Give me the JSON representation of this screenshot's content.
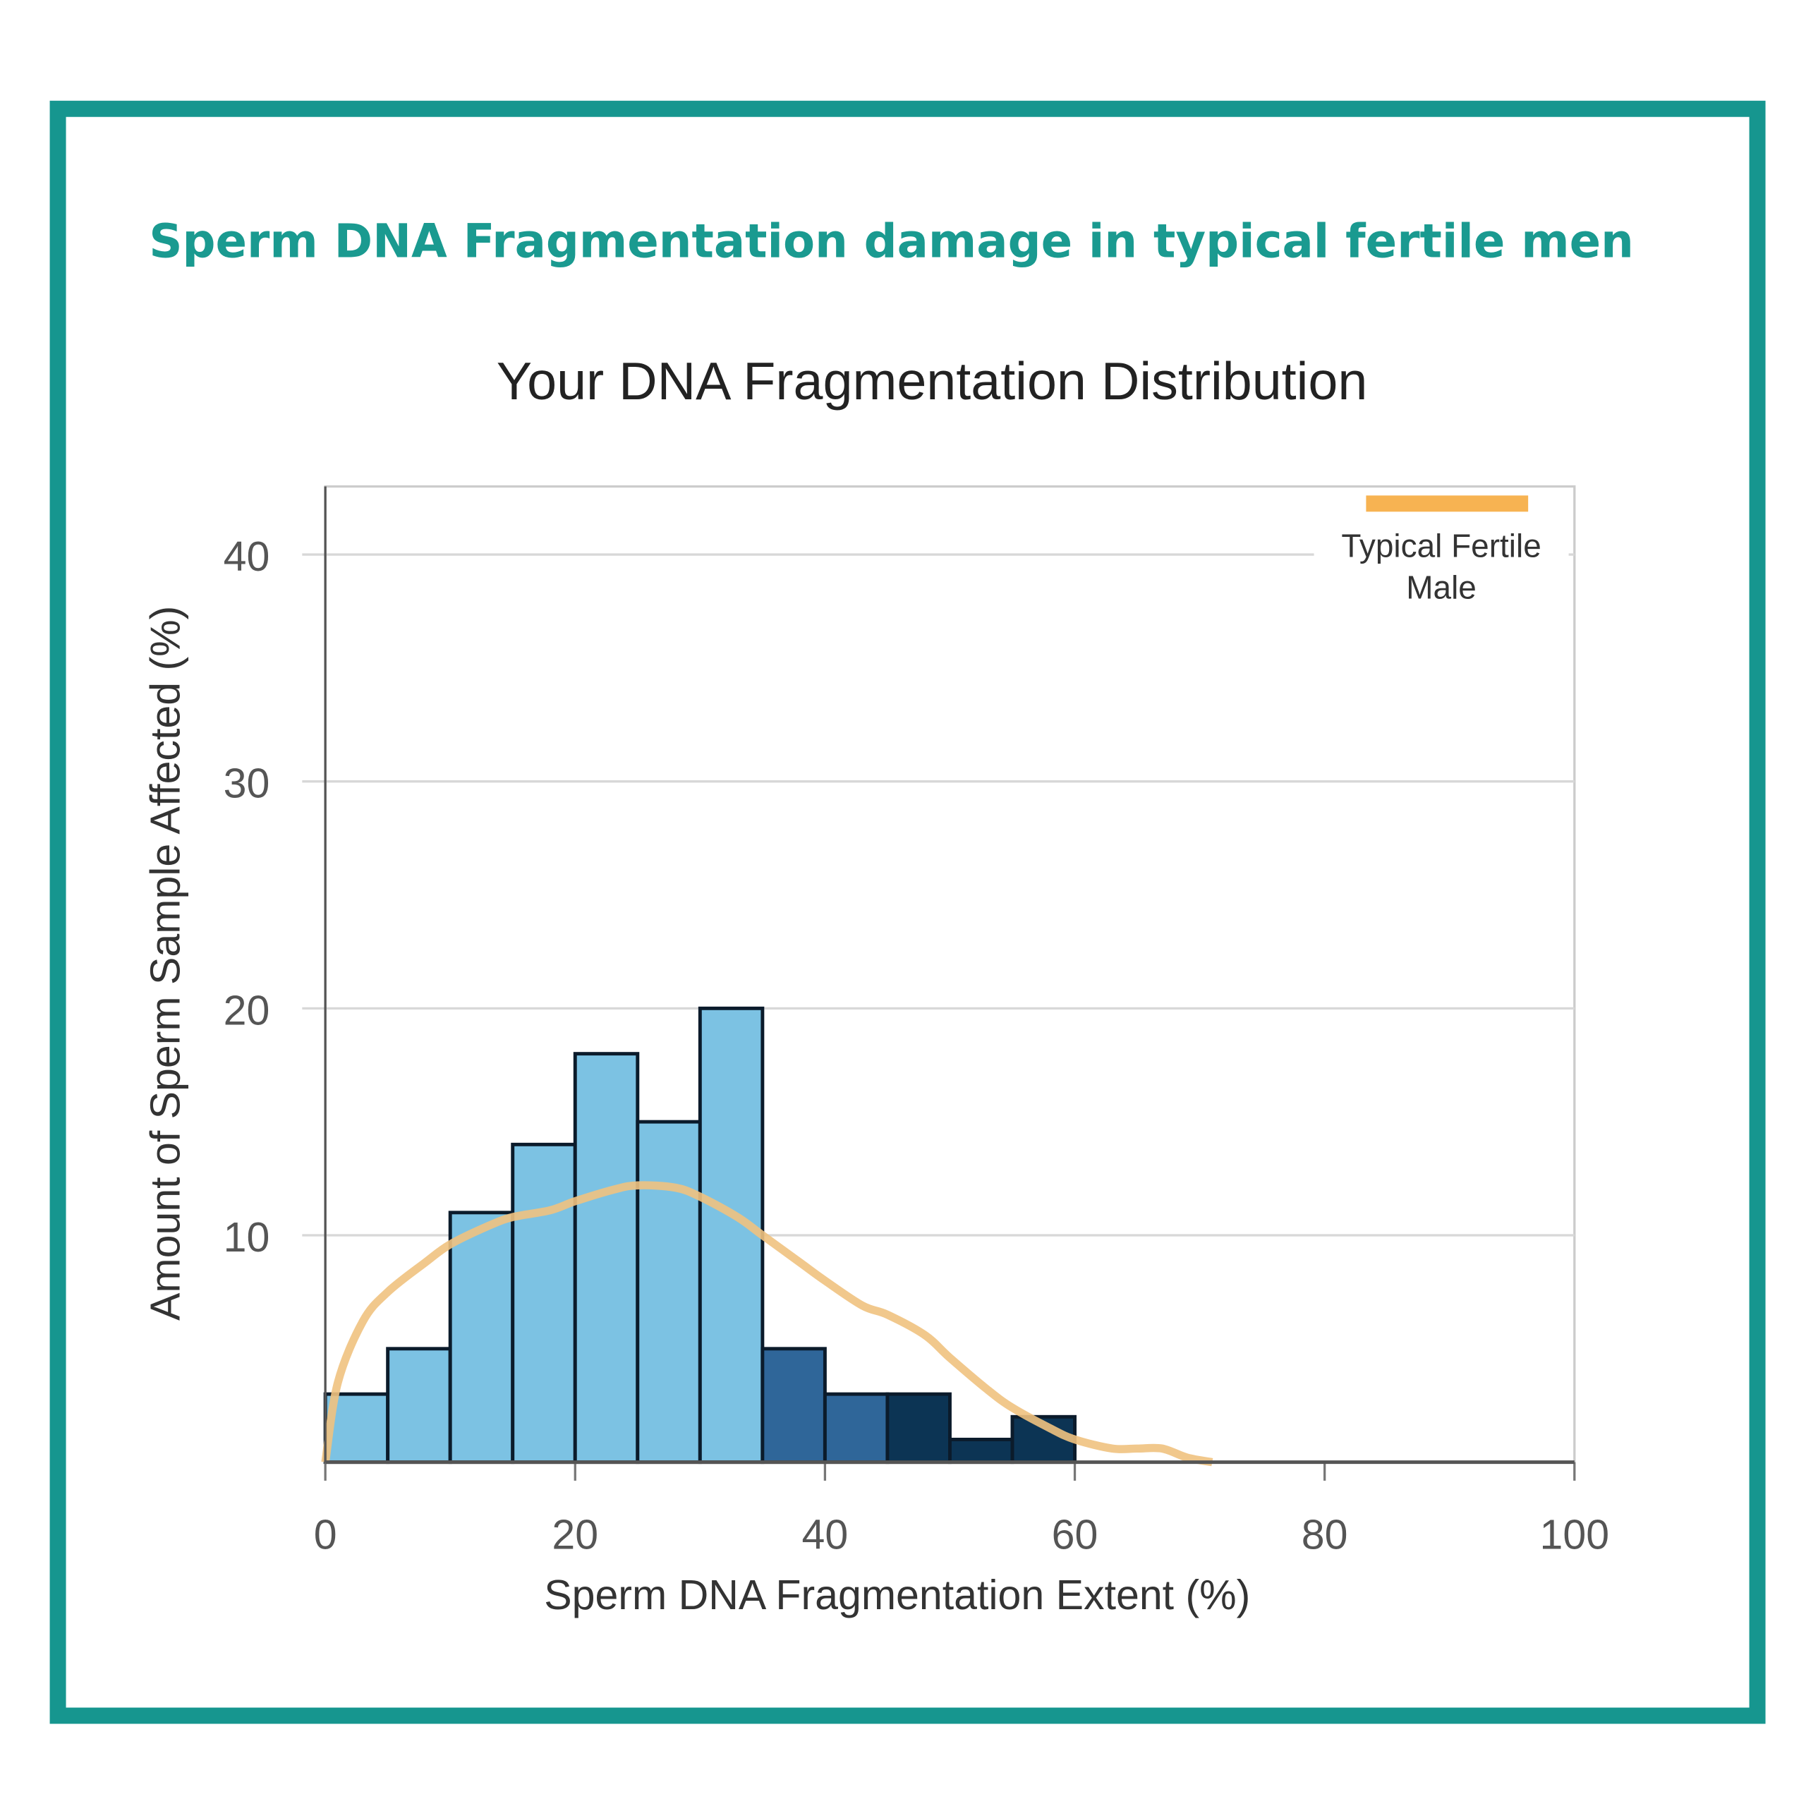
{
  "header": {
    "title": "Sperm DNA Fragmentation damage in typical fertile men"
  },
  "colors": {
    "frame": "#16968f",
    "title": "#1a9a90",
    "light_bar": "#7cc2e3",
    "mid_bar": "#2f6699",
    "dark_bar": "#0c3454",
    "curve": "#f0c27f",
    "legend": "#f7b352",
    "grid": "#d8d8d8"
  },
  "chart_data": {
    "type": "bar",
    "title": "Your DNA Fragmentation Distribution",
    "xlabel": "Sperm DNA Fragmentation Extent (%)",
    "ylabel": "Amount of Sperm Sample Affected (%)",
    "xlim": [
      0,
      100
    ],
    "ylim": [
      0,
      43
    ],
    "xticks": [
      "0",
      "20",
      "40",
      "60",
      "80",
      "100"
    ],
    "yticks": [
      "10",
      "20",
      "30",
      "40"
    ],
    "grid": true,
    "bins": [
      {
        "from": 0,
        "to": 5,
        "value": 3,
        "shade": "light"
      },
      {
        "from": 5,
        "to": 10,
        "value": 5,
        "shade": "light"
      },
      {
        "from": 10,
        "to": 15,
        "value": 11,
        "shade": "light"
      },
      {
        "from": 15,
        "to": 20,
        "value": 14,
        "shade": "light"
      },
      {
        "from": 20,
        "to": 25,
        "value": 18,
        "shade": "light"
      },
      {
        "from": 25,
        "to": 30,
        "value": 15,
        "shade": "light"
      },
      {
        "from": 30,
        "to": 35,
        "value": 20,
        "shade": "light"
      },
      {
        "from": 35,
        "to": 40,
        "value": 5,
        "shade": "mid"
      },
      {
        "from": 40,
        "to": 45,
        "value": 3,
        "shade": "mid"
      },
      {
        "from": 45,
        "to": 50,
        "value": 3,
        "shade": "dark"
      },
      {
        "from": 50,
        "to": 55,
        "value": 1,
        "shade": "dark"
      },
      {
        "from": 55,
        "to": 60,
        "value": 2,
        "shade": "dark"
      }
    ],
    "series": [
      {
        "name": "Typical Fertile Male",
        "type": "line",
        "x": [
          0,
          1,
          3,
          5,
          8,
          10,
          13,
          15,
          18,
          20,
          23,
          25,
          28,
          30,
          33,
          35,
          38,
          40,
          43,
          45,
          48,
          50,
          53,
          55,
          58,
          60,
          63,
          65,
          67,
          69,
          71
        ],
        "y": [
          0,
          3.5,
          6.2,
          7.5,
          8.8,
          9.6,
          10.4,
          10.8,
          11.1,
          11.5,
          12.0,
          12.2,
          12.1,
          11.7,
          10.8,
          10.0,
          8.8,
          8.0,
          6.9,
          6.5,
          5.6,
          4.6,
          3.2,
          2.4,
          1.5,
          1.0,
          0.6,
          0.6,
          0.6,
          0.2,
          0
        ]
      }
    ],
    "legend": {
      "label_line1": "Typical Fertile",
      "label_line2": "Male",
      "placement": "top-right"
    }
  }
}
